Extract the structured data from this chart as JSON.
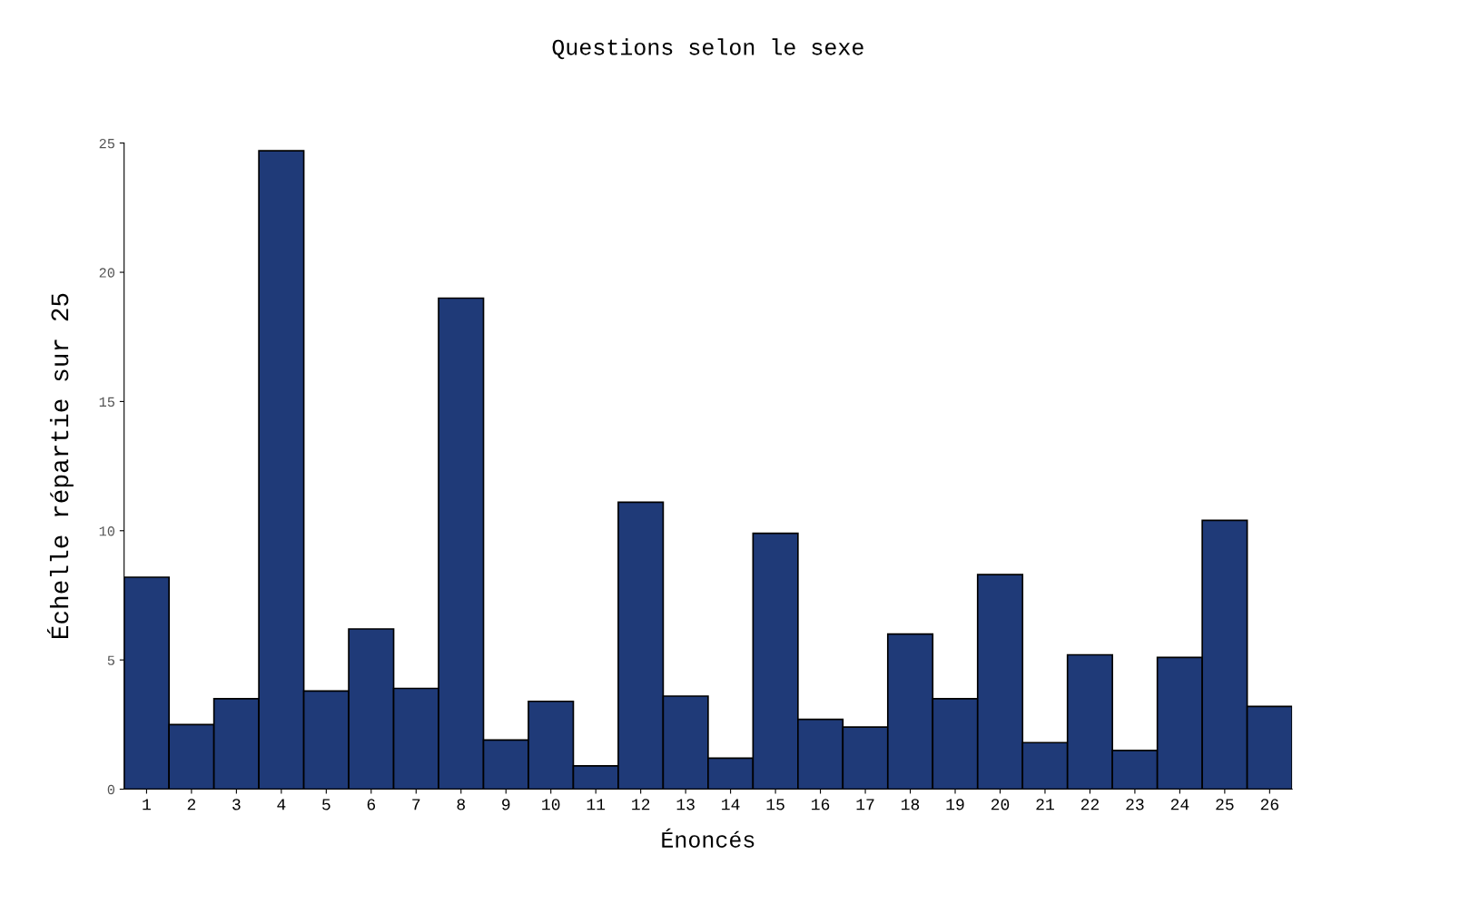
{
  "chart_data": {
    "type": "bar",
    "title": "Questions selon le sexe",
    "xlabel": "Énoncés",
    "ylabel": "Échelle répartie sur 25",
    "categories": [
      "1",
      "2",
      "3",
      "4",
      "5",
      "6",
      "7",
      "8",
      "9",
      "10",
      "11",
      "12",
      "13",
      "14",
      "15",
      "16",
      "17",
      "18",
      "19",
      "20",
      "21",
      "22",
      "23",
      "24",
      "25",
      "26"
    ],
    "values": [
      8.2,
      2.5,
      3.5,
      24.7,
      3.8,
      6.2,
      3.9,
      19.0,
      1.9,
      3.4,
      0.9,
      11.1,
      3.6,
      1.2,
      9.9,
      2.7,
      2.4,
      6.0,
      3.5,
      8.3,
      1.8,
      5.2,
      1.5,
      5.1,
      10.4,
      3.2
    ],
    "color": "#1f3a78",
    "ylim": [
      0,
      25
    ],
    "yticks": [
      0,
      5,
      10,
      15,
      20,
      25
    ],
    "grid": false,
    "legend": false
  }
}
